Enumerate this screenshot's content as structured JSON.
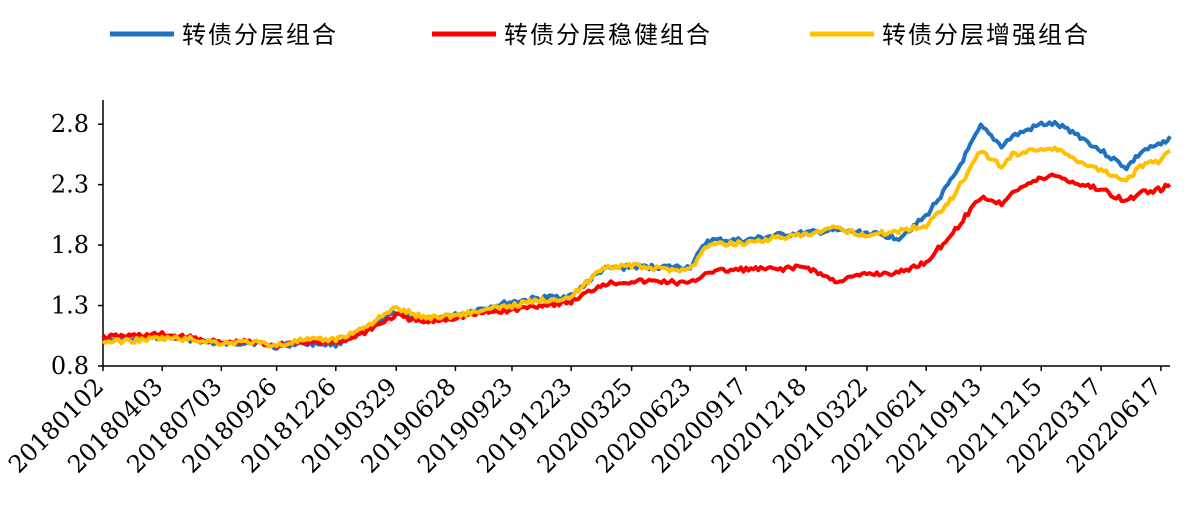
{
  "chart_data": {
    "type": "line",
    "title": "",
    "xlabel": "",
    "ylabel": "",
    "ylim": [
      0.8,
      3.0
    ],
    "yticks": [
      "0.8",
      "1.3",
      "1.8",
      "2.3",
      "2.8"
    ],
    "xlim": [
      "20180102",
      "20220701"
    ],
    "xticks": [
      "20180102",
      "20180403",
      "20180703",
      "20180926",
      "20181226",
      "20190329",
      "20190628",
      "20190923",
      "20191223",
      "20200325",
      "20200623",
      "20200917",
      "20201218",
      "20210322",
      "20210621",
      "20210913",
      "20211215",
      "20220317",
      "20220617"
    ],
    "grid": false,
    "legend": "top",
    "series": [
      {
        "name": "转债分层组合",
        "color": "#1f72c0",
        "x": [
          "20180102",
          "20180215",
          "20180403",
          "20180520",
          "20180703",
          "20180815",
          "20180926",
          "20181101",
          "20181226",
          "20190201",
          "20190329",
          "20190510",
          "20190628",
          "20190810",
          "20190923",
          "20191101",
          "20191223",
          "20200210",
          "20200325",
          "20200510",
          "20200623",
          "20200720",
          "20200917",
          "20201101",
          "20201218",
          "20210201",
          "20210322",
          "20210510",
          "20210621",
          "20210801",
          "20210913",
          "20211015",
          "20211101",
          "20211215",
          "20220105",
          "20220201",
          "20220317",
          "20220425",
          "20220520",
          "20220617",
          "20220701"
        ],
        "values": [
          1.02,
          1.02,
          1.04,
          1.02,
          0.98,
          1.0,
          0.96,
          0.99,
          0.98,
          1.08,
          1.25,
          1.18,
          1.22,
          1.28,
          1.33,
          1.36,
          1.38,
          1.6,
          1.62,
          1.62,
          1.62,
          1.84,
          1.84,
          1.88,
          1.9,
          1.92,
          1.9,
          1.86,
          2.04,
          2.35,
          2.78,
          2.62,
          2.7,
          2.8,
          2.8,
          2.74,
          2.58,
          2.44,
          2.58,
          2.63,
          2.7
        ]
      },
      {
        "name": "转债分层稳健组合",
        "color": "#ff0000",
        "x": [
          "20180102",
          "20180215",
          "20180403",
          "20180520",
          "20180703",
          "20180815",
          "20180926",
          "20181101",
          "20181226",
          "20190201",
          "20190329",
          "20190510",
          "20190628",
          "20190810",
          "20190923",
          "20191101",
          "20191223",
          "20200210",
          "20200325",
          "20200510",
          "20200623",
          "20200720",
          "20200917",
          "20201101",
          "20201218",
          "20210201",
          "20210322",
          "20210510",
          "20210621",
          "20210801",
          "20210913",
          "20211015",
          "20211101",
          "20211215",
          "20220105",
          "20220201",
          "20220317",
          "20220425",
          "20220520",
          "20220617",
          "20220701"
        ],
        "values": [
          1.04,
          1.05,
          1.06,
          1.03,
          0.99,
          1.0,
          0.97,
          1.0,
          0.99,
          1.06,
          1.22,
          1.16,
          1.2,
          1.24,
          1.26,
          1.3,
          1.33,
          1.48,
          1.5,
          1.5,
          1.48,
          1.58,
          1.6,
          1.6,
          1.62,
          1.5,
          1.56,
          1.57,
          1.66,
          1.9,
          2.2,
          2.14,
          2.25,
          2.35,
          2.38,
          2.32,
          2.26,
          2.16,
          2.24,
          2.26,
          2.3
        ]
      },
      {
        "name": "转债分层增强组合",
        "color": "#ffc000",
        "x": [
          "20180102",
          "20180215",
          "20180403",
          "20180520",
          "20180703",
          "20180815",
          "20180926",
          "20181101",
          "20181226",
          "20190201",
          "20190329",
          "20190510",
          "20190628",
          "20190810",
          "20190923",
          "20191101",
          "20191223",
          "20200210",
          "20200325",
          "20200510",
          "20200623",
          "20200720",
          "20200917",
          "20201101",
          "20201218",
          "20210201",
          "20210322",
          "20210510",
          "20210621",
          "20210801",
          "20210913",
          "20211015",
          "20211101",
          "20211215",
          "20220105",
          "20220201",
          "20220317",
          "20220425",
          "20220520",
          "20220617",
          "20220701"
        ],
        "values": [
          1.0,
          1.01,
          1.03,
          1.02,
          0.99,
          1.0,
          0.97,
          1.01,
          1.02,
          1.1,
          1.28,
          1.2,
          1.22,
          1.26,
          1.3,
          1.34,
          1.37,
          1.62,
          1.63,
          1.6,
          1.6,
          1.8,
          1.82,
          1.86,
          1.88,
          1.94,
          1.88,
          1.92,
          1.96,
          2.2,
          2.58,
          2.45,
          2.55,
          2.6,
          2.6,
          2.52,
          2.42,
          2.34,
          2.46,
          2.5,
          2.58
        ]
      }
    ]
  }
}
